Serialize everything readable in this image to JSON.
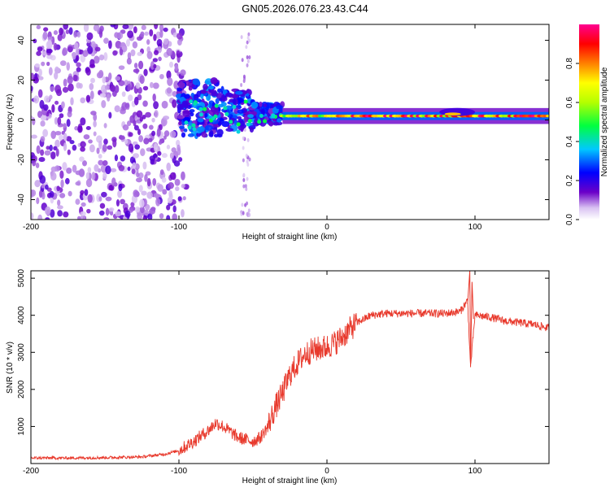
{
  "figure": {
    "title": "GN05.2026.076.23.43.C44"
  },
  "chart_data": [
    {
      "type": "heatmap",
      "title": "",
      "xlabel": "Height of straight line (km)",
      "ylabel": "Frequency (Hz)",
      "xlim": [
        -200,
        150
      ],
      "ylim": [
        -50,
        48
      ],
      "xticks": [
        -200,
        -100,
        0,
        100
      ],
      "yticks": [
        -40,
        -20,
        0,
        20,
        40
      ],
      "colorbar": {
        "label": "Normalized spectral amplitude",
        "range": [
          0.0,
          1.0
        ],
        "ticks": [
          0.0,
          0.2,
          0.4,
          0.6,
          0.8
        ],
        "colors": [
          "#ffffff",
          "#6b00c8",
          "#0000ff",
          "#00c8ff",
          "#00ff40",
          "#ffff00",
          "#ff8000",
          "#ff0000",
          "#ff0090"
        ]
      },
      "features": [
        {
          "name": "noise",
          "x_range": [
            -200,
            -95
          ],
          "freq_range": [
            -50,
            48
          ],
          "amplitude": 0.1
        },
        {
          "name": "scatter",
          "x_range": [
            -100,
            -30
          ],
          "freq_range": [
            -10,
            20
          ],
          "amplitude": 0.3
        },
        {
          "name": "stable_band",
          "x_range": [
            -30,
            150
          ],
          "freq_center": 2,
          "amplitude": 0.9
        }
      ]
    },
    {
      "type": "line",
      "title": "",
      "xlabel": "Height of straight line (km)",
      "ylabel": "SNR (10 * v/v)",
      "xlim": [
        -200,
        150
      ],
      "ylim": [
        0,
        5200
      ],
      "xticks": [
        -200,
        -100,
        0,
        100
      ],
      "yticks": [
        1000,
        2000,
        3000,
        4000,
        5000
      ],
      "series": [
        {
          "name": "SNR",
          "color": "#e8392c",
          "x": [
            -200,
            -175,
            -150,
            -125,
            -110,
            -100,
            -90,
            -80,
            -75,
            -70,
            -65,
            -60,
            -50,
            -45,
            -40,
            -35,
            -30,
            -25,
            -20,
            -15,
            -10,
            -5,
            0,
            5,
            10,
            15,
            20,
            25,
            30,
            40,
            50,
            60,
            70,
            80,
            90,
            95,
            97,
            100,
            110,
            120,
            130,
            140,
            150
          ],
          "y": [
            150,
            150,
            160,
            180,
            250,
            350,
            600,
            900,
            1100,
            1000,
            850,
            700,
            600,
            700,
            1000,
            1500,
            1900,
            2400,
            2700,
            2950,
            3050,
            3100,
            3150,
            3250,
            3400,
            3600,
            3800,
            3900,
            4000,
            4050,
            4050,
            4050,
            4050,
            4050,
            4100,
            4400,
            2600,
            4000,
            3950,
            3850,
            3800,
            3750,
            3650
          ]
        }
      ]
    }
  ]
}
